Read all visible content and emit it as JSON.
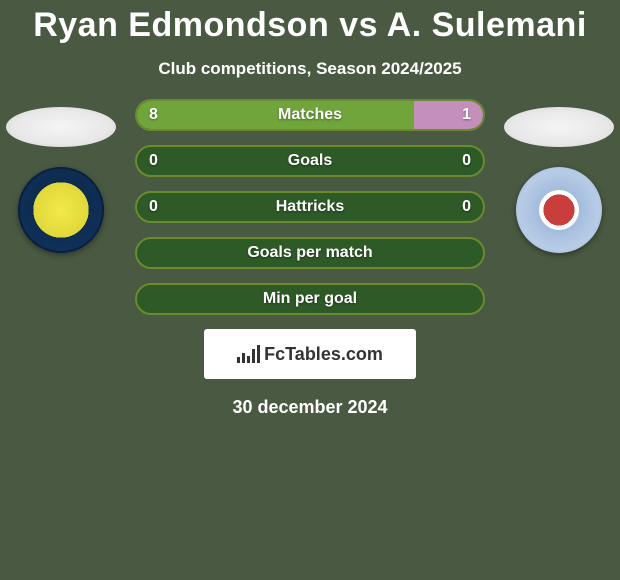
{
  "title": "Ryan Edmondson vs A. Sulemani",
  "subtitle": "Club competitions, Season 2024/2025",
  "date": "30 december 2024",
  "brand": "FcTables.com",
  "colors": {
    "background": "#4a5942",
    "bar_bg": "#2e5a27",
    "bar_border": "#6a8a2e",
    "fill_left": "#6fa53a",
    "fill_right": "#c58fbc",
    "brand_bg": "#ffffff",
    "brand_text": "#333333"
  },
  "bars": [
    {
      "label": "Matches",
      "left_val": "8",
      "right_val": "1",
      "left_pct": 80,
      "right_pct": 20,
      "show_vals": true
    },
    {
      "label": "Goals",
      "left_val": "0",
      "right_val": "0",
      "left_pct": 0,
      "right_pct": 0,
      "show_vals": true
    },
    {
      "label": "Hattricks",
      "left_val": "0",
      "right_val": "0",
      "left_pct": 0,
      "right_pct": 0,
      "show_vals": true
    },
    {
      "label": "Goals per match",
      "left_val": "",
      "right_val": "",
      "left_pct": 0,
      "right_pct": 0,
      "show_vals": false
    },
    {
      "label": "Min per goal",
      "left_val": "",
      "right_val": "",
      "left_pct": 0,
      "right_pct": 0,
      "show_vals": false
    }
  ],
  "brand_icon_heights": [
    6,
    10,
    7,
    14,
    18
  ]
}
